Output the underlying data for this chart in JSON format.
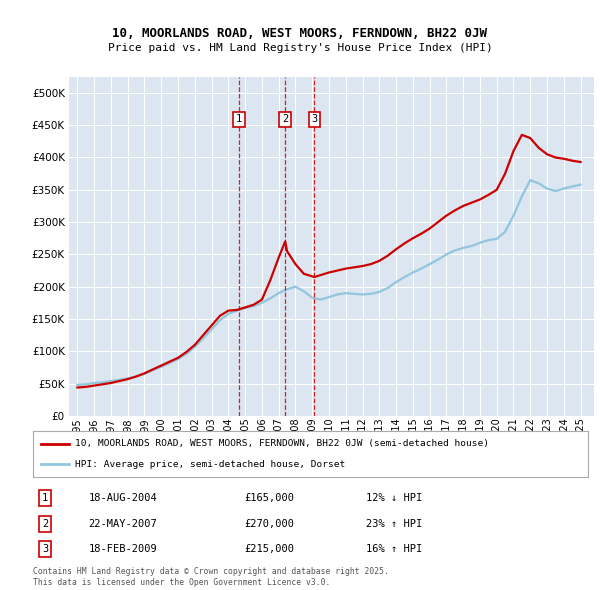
{
  "title_line1": "10, MOORLANDS ROAD, WEST MOORS, FERNDOWN, BH22 0JW",
  "title_line2": "Price paid vs. HM Land Registry's House Price Index (HPI)",
  "ylim": [
    0,
    525000
  ],
  "yticks": [
    0,
    50000,
    100000,
    150000,
    200000,
    250000,
    300000,
    350000,
    400000,
    450000,
    500000
  ],
  "background_color": "#dce6f1",
  "red_line_color": "#cc0000",
  "blue_line_color": "#92c5de",
  "sale_markers": [
    {
      "label": "1",
      "date": "18-AUG-2004",
      "price": 165000,
      "pct": "12%",
      "dir": "↓",
      "x_year": 2004.63
    },
    {
      "label": "2",
      "date": "22-MAY-2007",
      "price": 270000,
      "pct": "23%",
      "dir": "↑",
      "x_year": 2007.39
    },
    {
      "label": "3",
      "date": "18-FEB-2009",
      "price": 215000,
      "pct": "16%",
      "dir": "↑",
      "x_year": 2009.13
    }
  ],
  "legend_label_red": "10, MOORLANDS ROAD, WEST MOORS, FERNDOWN, BH22 0JW (semi-detached house)",
  "legend_label_blue": "HPI: Average price, semi-detached house, Dorset",
  "footer": "Contains HM Land Registry data © Crown copyright and database right 2025.\nThis data is licensed under the Open Government Licence v3.0.",
  "hpi_data": {
    "x": [
      1995.0,
      1995.5,
      1996.0,
      1996.5,
      1997.0,
      1997.5,
      1998.0,
      1998.5,
      1999.0,
      1999.5,
      2000.0,
      2000.5,
      2001.0,
      2001.5,
      2002.0,
      2002.5,
      2003.0,
      2003.5,
      2004.0,
      2004.5,
      2005.0,
      2005.5,
      2006.0,
      2006.5,
      2007.0,
      2007.5,
      2008.0,
      2008.5,
      2009.0,
      2009.5,
      2010.0,
      2010.5,
      2011.0,
      2011.5,
      2012.0,
      2012.5,
      2013.0,
      2013.5,
      2014.0,
      2014.5,
      2015.0,
      2015.5,
      2016.0,
      2016.5,
      2017.0,
      2017.5,
      2018.0,
      2018.5,
      2019.0,
      2019.5,
      2020.0,
      2020.5,
      2021.0,
      2021.5,
      2022.0,
      2022.5,
      2023.0,
      2023.5,
      2024.0,
      2024.5,
      2025.0
    ],
    "y": [
      48000,
      49000,
      51000,
      52000,
      54000,
      56000,
      58000,
      61000,
      65000,
      71000,
      76000,
      82000,
      88000,
      96000,
      107000,
      120000,
      134000,
      148000,
      158000,
      163000,
      167000,
      170000,
      175000,
      182000,
      190000,
      196000,
      200000,
      193000,
      183000,
      180000,
      184000,
      188000,
      190000,
      189000,
      188000,
      189000,
      192000,
      198000,
      207000,
      215000,
      222000,
      228000,
      235000,
      242000,
      250000,
      256000,
      260000,
      263000,
      268000,
      272000,
      274000,
      285000,
      310000,
      340000,
      365000,
      360000,
      352000,
      348000,
      352000,
      355000,
      358000
    ]
  },
  "property_data": {
    "x": [
      1995.0,
      1995.5,
      1996.0,
      1996.5,
      1997.0,
      1997.5,
      1998.0,
      1998.5,
      1999.0,
      1999.5,
      2000.0,
      2000.5,
      2001.0,
      2001.5,
      2002.0,
      2002.5,
      2003.0,
      2003.5,
      2004.0,
      2004.5,
      2004.63,
      2005.0,
      2005.5,
      2006.0,
      2006.5,
      2007.0,
      2007.39,
      2007.5,
      2008.0,
      2008.5,
      2009.13,
      2009.5,
      2010.0,
      2010.5,
      2011.0,
      2011.5,
      2012.0,
      2012.5,
      2013.0,
      2013.5,
      2014.0,
      2014.5,
      2015.0,
      2015.5,
      2016.0,
      2016.5,
      2017.0,
      2017.5,
      2018.0,
      2018.5,
      2019.0,
      2019.5,
      2020.0,
      2020.5,
      2021.0,
      2021.5,
      2022.0,
      2022.5,
      2023.0,
      2023.5,
      2024.0,
      2024.5,
      2025.0
    ],
    "y": [
      44000,
      45000,
      47000,
      49000,
      51000,
      54000,
      57000,
      61000,
      66000,
      72000,
      78000,
      84000,
      90000,
      99000,
      110000,
      125000,
      140000,
      155000,
      163000,
      164000,
      165000,
      168000,
      172000,
      180000,
      210000,
      245000,
      270000,
      255000,
      235000,
      220000,
      215000,
      218000,
      222000,
      225000,
      228000,
      230000,
      232000,
      235000,
      240000,
      248000,
      258000,
      267000,
      275000,
      282000,
      290000,
      300000,
      310000,
      318000,
      325000,
      330000,
      335000,
      342000,
      350000,
      375000,
      410000,
      435000,
      430000,
      415000,
      405000,
      400000,
      398000,
      395000,
      393000
    ]
  },
  "xlim": [
    1994.5,
    2025.8
  ],
  "xtick_years": [
    1995,
    1996,
    1997,
    1998,
    1999,
    2000,
    2001,
    2002,
    2003,
    2004,
    2005,
    2006,
    2007,
    2008,
    2009,
    2010,
    2011,
    2012,
    2013,
    2014,
    2015,
    2016,
    2017,
    2018,
    2019,
    2020,
    2021,
    2022,
    2023,
    2024,
    2025
  ]
}
